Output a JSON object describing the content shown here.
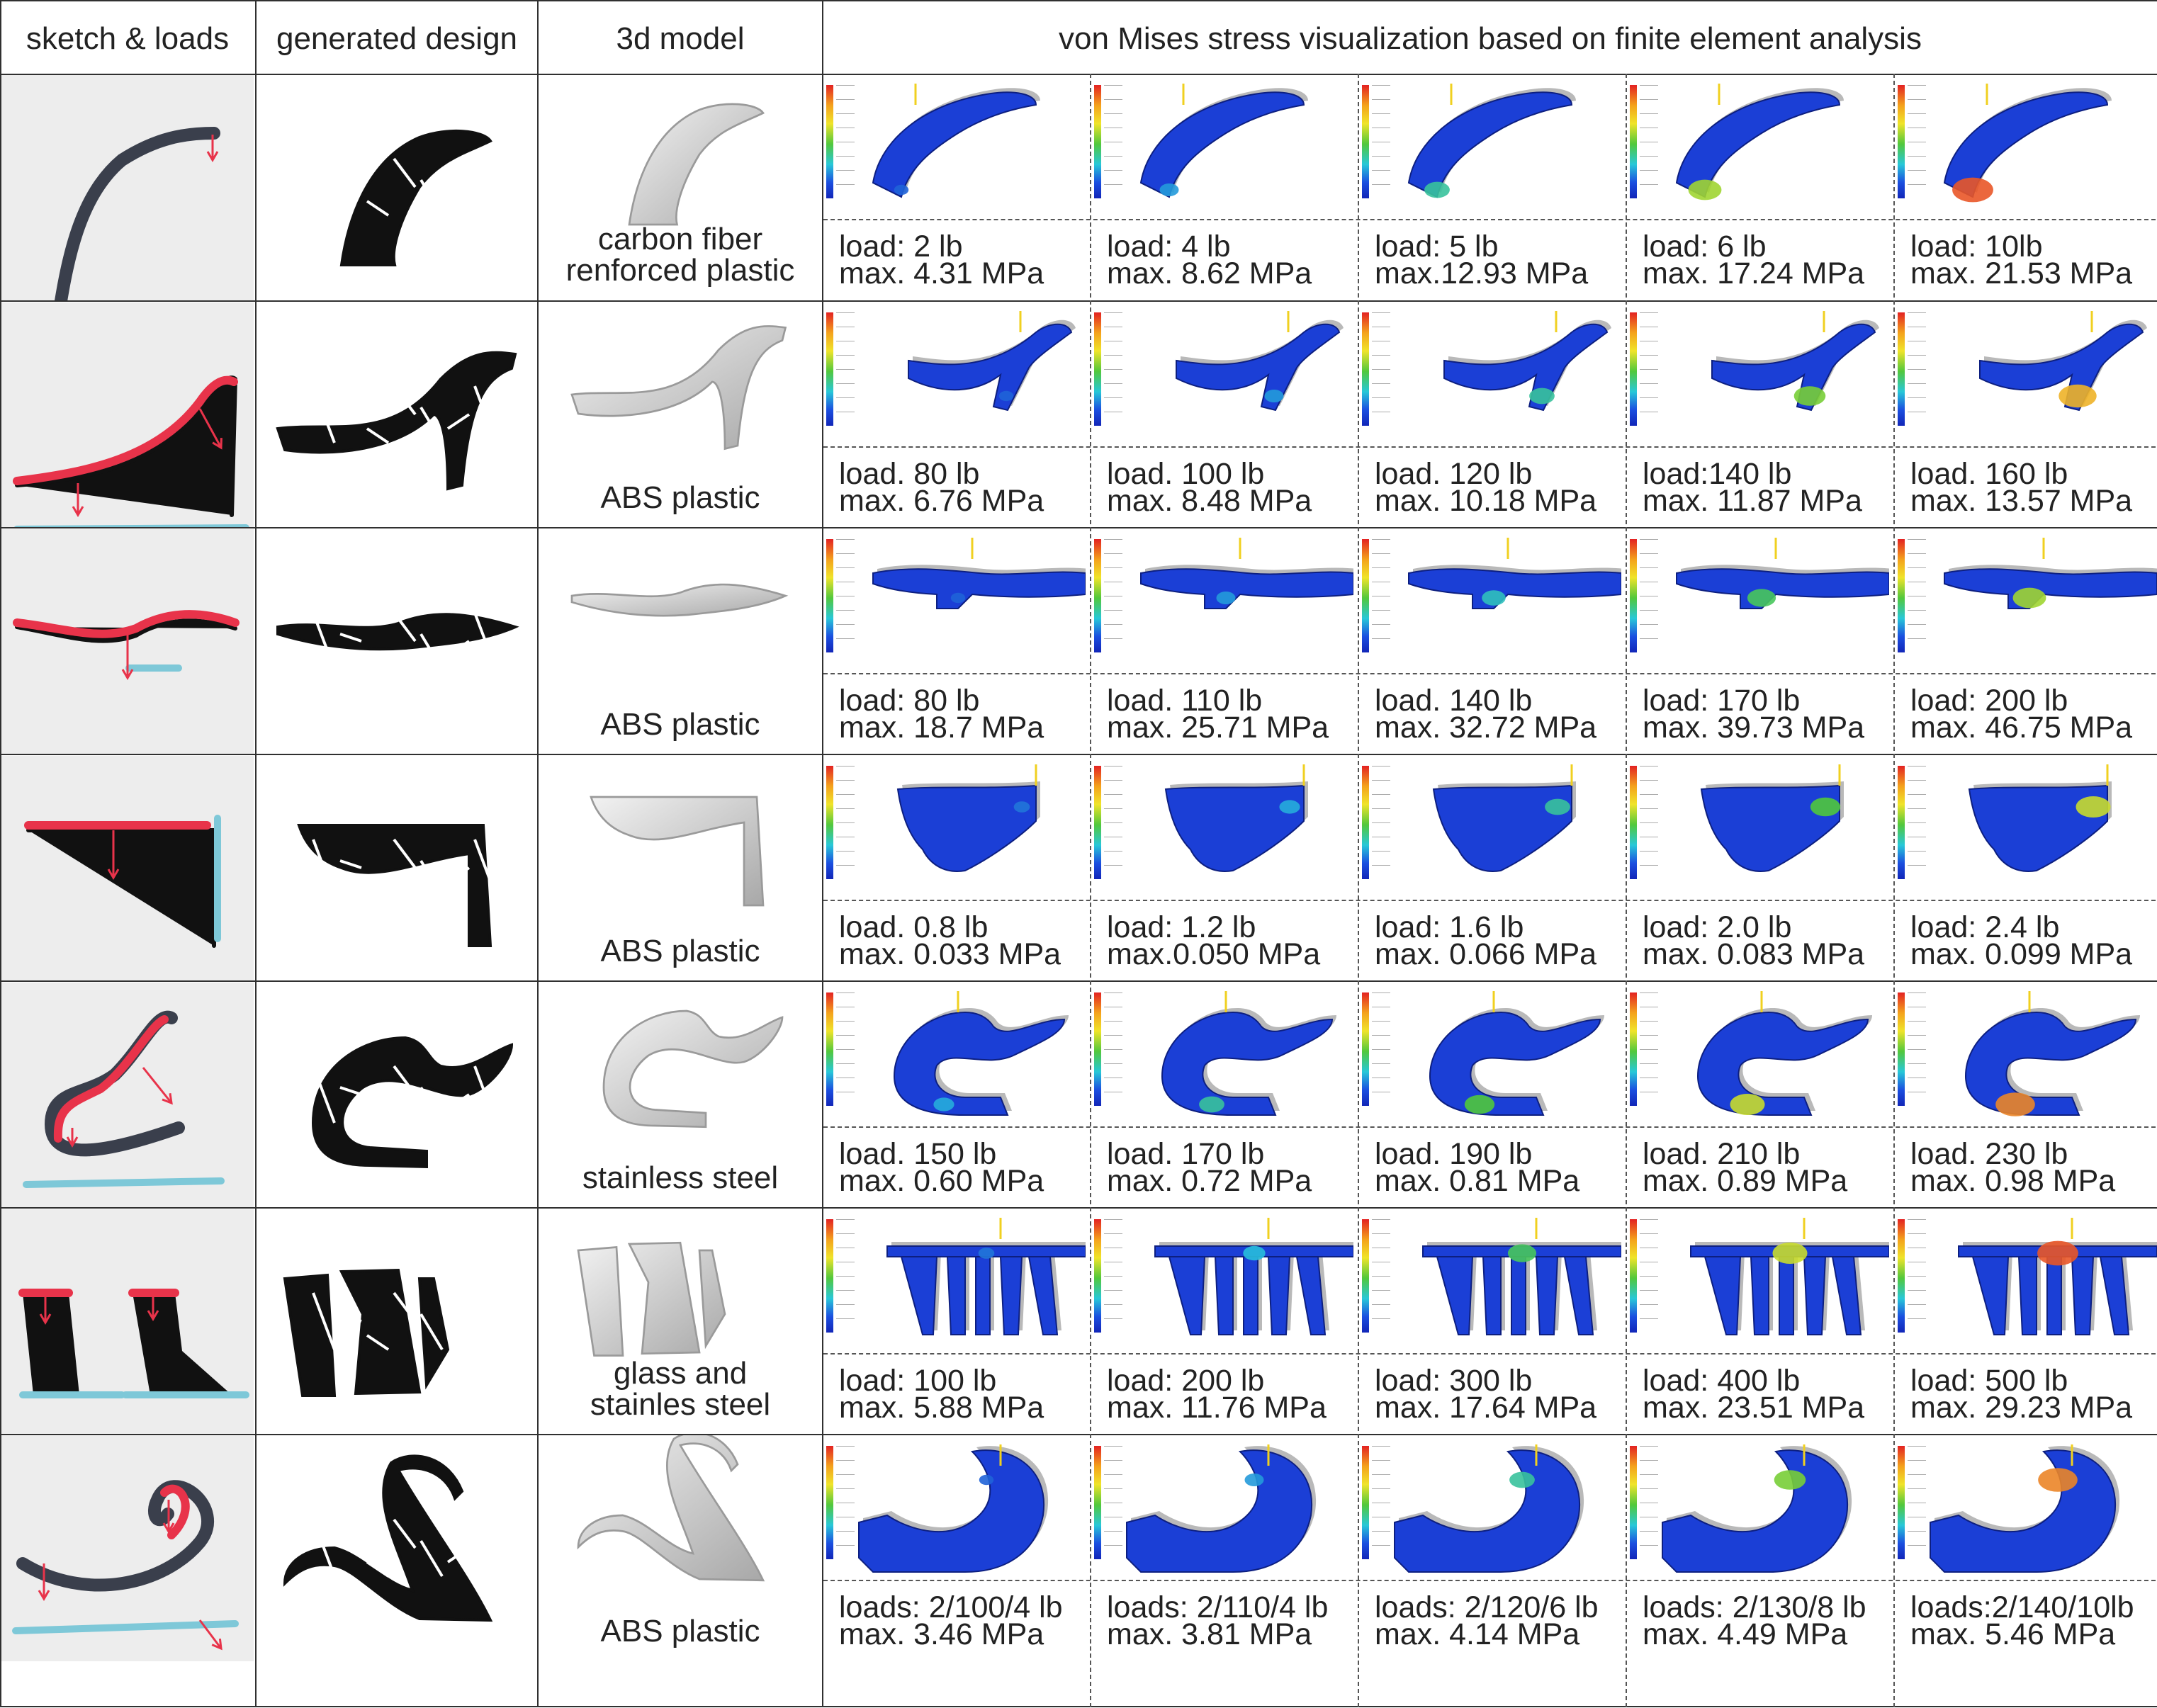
{
  "headers": {
    "sketch": "sketch & loads",
    "design": "generated design",
    "model": "3d model",
    "fea": "von Mises stress visualization based on finite element analysis"
  },
  "rows": [
    {
      "material": [
        "carbon fiber",
        "renforced plastic"
      ],
      "sims": [
        {
          "load": "load: 2 lb",
          "max": "max. 4.31 MPa",
          "stress": 0.1
        },
        {
          "load": "load: 4 lb",
          "max": "max. 8.62 MPa",
          "stress": 0.25
        },
        {
          "load": "load: 5 lb",
          "max": "max.12.93 MPa",
          "stress": 0.45
        },
        {
          "load": "load: 6 lb",
          "max": "max. 17.24 MPa",
          "stress": 0.7
        },
        {
          "load": "load: 10lb",
          "max": "max. 21.53 MPa",
          "stress": 0.95
        }
      ]
    },
    {
      "material": [
        "ABS plastic"
      ],
      "sims": [
        {
          "load": "load. 80 lb",
          "max": "max. 6.76 MPa",
          "stress": 0.1
        },
        {
          "load": "load. 100 lb",
          "max": "max. 8.48 MPa",
          "stress": 0.25
        },
        {
          "load": "load. 120 lb",
          "max": "max. 10.18 MPa",
          "stress": 0.45
        },
        {
          "load": "load:140 lb",
          "max": "max. 11.87 MPa",
          "stress": 0.65
        },
        {
          "load": "load. 160 lb",
          "max": "max. 13.57 MPa",
          "stress": 0.85
        }
      ]
    },
    {
      "material": [
        "ABS plastic"
      ],
      "sims": [
        {
          "load": "load: 80 lb",
          "max": "max. 18.7 MPa",
          "stress": 0.1
        },
        {
          "load": "load. 110 lb",
          "max": "max. 25.71 MPa",
          "stress": 0.25
        },
        {
          "load": "load. 140 lb",
          "max": "max. 32.72 MPa",
          "stress": 0.4
        },
        {
          "load": "load: 170 lb",
          "max": "max. 39.73 MPa",
          "stress": 0.55
        },
        {
          "load": "load: 200 lb",
          "max": "max. 46.75 MPa",
          "stress": 0.7
        }
      ]
    },
    {
      "material": [
        "ABS plastic"
      ],
      "sims": [
        {
          "load": "load. 0.8 lb",
          "max": "max. 0.033 MPa",
          "stress": 0.15
        },
        {
          "load": "load: 1.2 lb",
          "max": "max.0.050  MPa",
          "stress": 0.3
        },
        {
          "load": "load: 1.6 lb",
          "max": "max. 0.066 MPa",
          "stress": 0.45
        },
        {
          "load": "load: 2.0 lb",
          "max": "max. 0.083 MPa",
          "stress": 0.6
        },
        {
          "load": "load: 2.4 lb",
          "max": "max. 0.099 MPa",
          "stress": 0.75
        }
      ]
    },
    {
      "material": [
        "stainless steel"
      ],
      "sims": [
        {
          "load": "load. 150 lb",
          "max": "max. 0.60 MPa",
          "stress": 0.3
        },
        {
          "load": "load. 170 lb",
          "max": "max. 0.72 MPa",
          "stress": 0.45
        },
        {
          "load": "load. 190 lb",
          "max": "max. 0.81 MPa",
          "stress": 0.6
        },
        {
          "load": "load. 210 lb",
          "max": "max. 0.89 MPa",
          "stress": 0.75
        },
        {
          "load": "load. 230 lb",
          "max": "max. 0.98 MPa",
          "stress": 0.9
        }
      ]
    },
    {
      "material": [
        "glass and",
        "stainles steel"
      ],
      "sims": [
        {
          "load": "load: 100 lb",
          "max": "max. 5.88 MPa",
          "stress": 0.15
        },
        {
          "load": "load: 200 lb",
          "max": "max. 11.76 MPa",
          "stress": 0.35
        },
        {
          "load": "load: 300 lb",
          "max": "max. 17.64 MPa",
          "stress": 0.55
        },
        {
          "load": "load: 400 lb",
          "max": "max. 23.51 MPa",
          "stress": 0.75
        },
        {
          "load": "load: 500 lb",
          "max": "max. 29.23 MPa",
          "stress": 0.95
        }
      ]
    },
    {
      "material": [
        "ABS plastic"
      ],
      "sims": [
        {
          "load": "loads: 2/100/4 lb",
          "max": "max. 3.46 MPa",
          "stress": 0.1
        },
        {
          "load": "loads: 2/110/4 lb",
          "max": "max. 3.81 MPa",
          "stress": 0.25
        },
        {
          "load": "loads: 2/120/6 lb",
          "max": "max. 4.14 MPa",
          "stress": 0.45
        },
        {
          "load": "loads: 2/130/8 lb",
          "max": "max. 4.49 MPa",
          "stress": 0.65
        },
        {
          "load": "loads:2/140/10lb",
          "max": "max. 5.46 MPa",
          "stress": 0.9
        }
      ]
    }
  ],
  "colors": {
    "fea_body": "#1b3fd6",
    "sketch_stroke": "#3a3f4c",
    "load_arrow": "#e8334a",
    "ground": "#7ec8d8",
    "sketch_background": "#ededed"
  }
}
